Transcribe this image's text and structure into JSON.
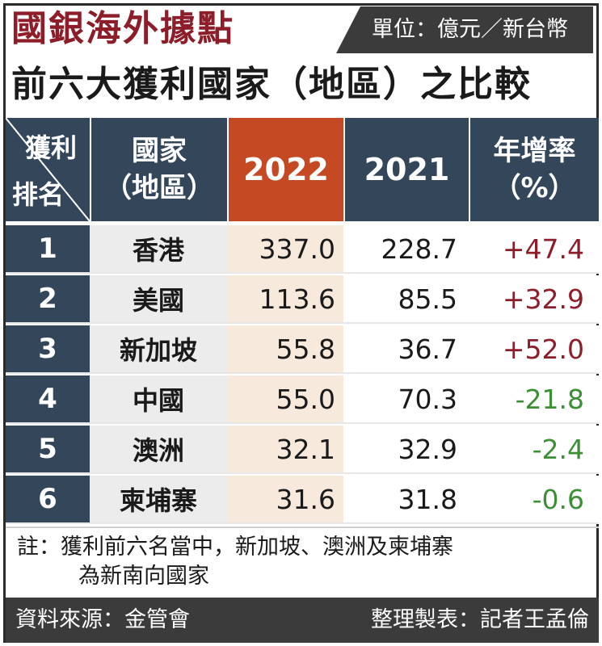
{
  "title": "國銀海外據點",
  "unit": "單位：億元／新台幣",
  "subtitle": "前六大獲利國家（地區）之比較",
  "headers": {
    "rank_top": "獲利",
    "rank_bottom": "排名",
    "country_top": "國家",
    "country_bottom": "（地區）",
    "y2022": "2022",
    "y2021": "2021",
    "rate_top": "年增率",
    "rate_bottom": "（%）"
  },
  "rows": [
    {
      "rank": "1",
      "country": "香港",
      "y2022": "337.0",
      "y2021": "228.7",
      "rate": "+47.4"
    },
    {
      "rank": "2",
      "country": "美國",
      "y2022": "113.6",
      "y2021": "85.5",
      "rate": "+32.9"
    },
    {
      "rank": "3",
      "country": "新加坡",
      "y2022": "55.8",
      "y2021": "36.7",
      "rate": "+52.0"
    },
    {
      "rank": "4",
      "country": "中國",
      "y2022": "55.0",
      "y2021": "70.3",
      "rate": "-21.8"
    },
    {
      "rank": "5",
      "country": "澳洲",
      "y2022": "32.1",
      "y2021": "32.9",
      "rate": "-2.4"
    },
    {
      "rank": "6",
      "country": "柬埔寨",
      "y2022": "31.6",
      "y2021": "31.8",
      "rate": "-0.6"
    }
  ],
  "note_line1": "註：獲利前六名當中，新加坡、澳洲及柬埔寨",
  "note_line2": "為新南向國家",
  "source": "資料來源：金管會",
  "author": "整理製表：記者王孟倫",
  "colors": {
    "header_dark": "#34465a",
    "header_2022": "#c54a24",
    "title_red": "#8e1d2a",
    "positive": "#8e1d2a",
    "negative": "#3c8f35"
  }
}
